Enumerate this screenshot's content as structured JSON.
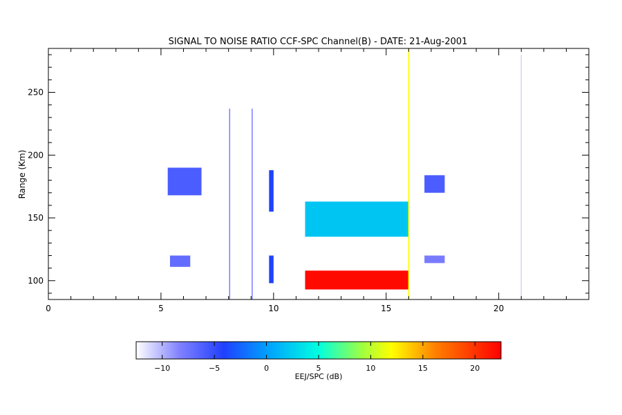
{
  "chart_data": {
    "type": "heatmap",
    "title": "SIGNAL TO NOISE RATIO CCF-SPC Channel(B) - DATE: 21-Aug-2001",
    "xlabel": "",
    "ylabel": "Range (Km)",
    "xlim": [
      0,
      24
    ],
    "ylim": [
      85,
      285
    ],
    "x_ticks": [
      0,
      5,
      10,
      15,
      20
    ],
    "y_ticks": [
      100,
      150,
      200,
      250
    ],
    "colorbar": {
      "label": "EEJ/SPC (dB)",
      "range": [
        -12.5,
        22.5
      ],
      "ticks": [
        -10,
        -5,
        0,
        5,
        10,
        15,
        20
      ],
      "colors": [
        "#ffffff",
        "#5050ff",
        "#2060ff",
        "#00ffff",
        "#ffff00",
        "#ff8000",
        "#ff0000"
      ]
    },
    "regions": [
      {
        "name": "echo-100km-strong",
        "x0": 11.4,
        "x1": 16.0,
        "y0": 93,
        "y1": 108,
        "snr": 22
      },
      {
        "name": "echo-150km",
        "x0": 11.4,
        "x1": 16.0,
        "y0": 135,
        "y1": 163,
        "snr": 2
      },
      {
        "name": "echo-178km-morning",
        "x0": 5.3,
        "x1": 6.8,
        "y0": 168,
        "y1": 190,
        "snr": -6
      },
      {
        "name": "echo-115km-morning",
        "x0": 5.4,
        "x1": 6.3,
        "y0": 111,
        "y1": 120,
        "snr": -7
      },
      {
        "name": "echo-170km-10h",
        "x0": 9.8,
        "x1": 10.0,
        "y0": 155,
        "y1": 188,
        "snr": -4
      },
      {
        "name": "echo-110km-10h",
        "x0": 9.8,
        "x1": 10.0,
        "y0": 98,
        "y1": 120,
        "snr": -4
      },
      {
        "name": "echo-178km-afternoon",
        "x0": 16.7,
        "x1": 17.6,
        "y0": 170,
        "y1": 184,
        "snr": -6
      },
      {
        "name": "echo-117km-afternoon",
        "x0": 16.7,
        "x1": 17.6,
        "y0": 114,
        "y1": 120,
        "snr": -8
      }
    ],
    "vertical_lines": [
      {
        "x": 8.05,
        "y0": 85,
        "y1": 237,
        "snr": -8
      },
      {
        "x": 9.05,
        "y0": 85,
        "y1": 237,
        "snr": -8
      },
      {
        "x": 16.0,
        "y0": 85,
        "y1": 285,
        "snr": 12
      },
      {
        "x": 21.0,
        "y0": 85,
        "y1": 280,
        "snr": -11
      }
    ]
  }
}
